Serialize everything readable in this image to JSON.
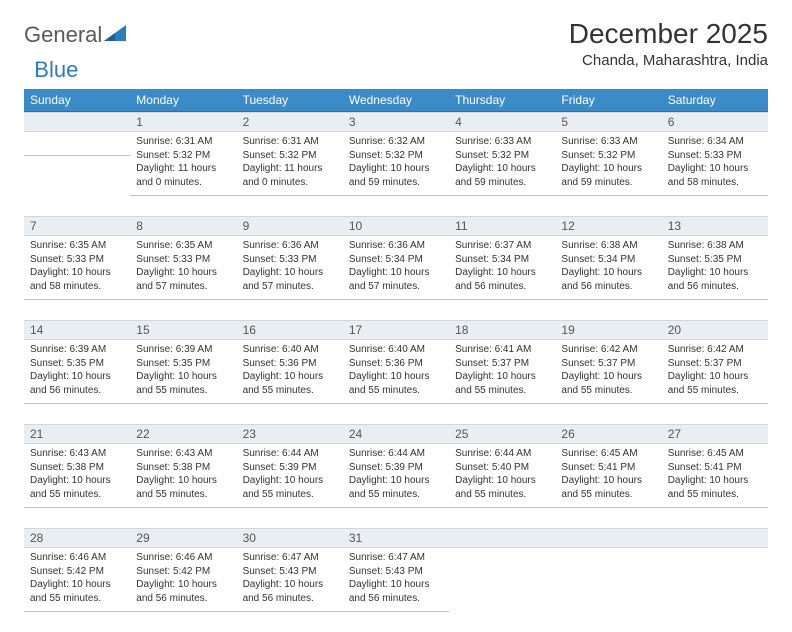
{
  "brand": {
    "part1": "General",
    "part2": "Blue"
  },
  "title": "December 2025",
  "location": "Chanda, Maharashtra, India",
  "colors": {
    "header_bg": "#3b8bc9",
    "header_text": "#ffffff",
    "daynum_bg": "#e9eef2",
    "text": "#333333",
    "brand_gray": "#5a5a5a",
    "brand_blue": "#2c7bbf",
    "row_divider": "#3b6e9e"
  },
  "day_headers": [
    "Sunday",
    "Monday",
    "Tuesday",
    "Wednesday",
    "Thursday",
    "Friday",
    "Saturday"
  ],
  "weeks": [
    [
      null,
      {
        "n": "1",
        "sr": "Sunrise: 6:31 AM",
        "ss": "Sunset: 5:32 PM",
        "dl": "Daylight: 11 hours and 0 minutes."
      },
      {
        "n": "2",
        "sr": "Sunrise: 6:31 AM",
        "ss": "Sunset: 5:32 PM",
        "dl": "Daylight: 11 hours and 0 minutes."
      },
      {
        "n": "3",
        "sr": "Sunrise: 6:32 AM",
        "ss": "Sunset: 5:32 PM",
        "dl": "Daylight: 10 hours and 59 minutes."
      },
      {
        "n": "4",
        "sr": "Sunrise: 6:33 AM",
        "ss": "Sunset: 5:32 PM",
        "dl": "Daylight: 10 hours and 59 minutes."
      },
      {
        "n": "5",
        "sr": "Sunrise: 6:33 AM",
        "ss": "Sunset: 5:32 PM",
        "dl": "Daylight: 10 hours and 59 minutes."
      },
      {
        "n": "6",
        "sr": "Sunrise: 6:34 AM",
        "ss": "Sunset: 5:33 PM",
        "dl": "Daylight: 10 hours and 58 minutes."
      }
    ],
    [
      {
        "n": "7",
        "sr": "Sunrise: 6:35 AM",
        "ss": "Sunset: 5:33 PM",
        "dl": "Daylight: 10 hours and 58 minutes."
      },
      {
        "n": "8",
        "sr": "Sunrise: 6:35 AM",
        "ss": "Sunset: 5:33 PM",
        "dl": "Daylight: 10 hours and 57 minutes."
      },
      {
        "n": "9",
        "sr": "Sunrise: 6:36 AM",
        "ss": "Sunset: 5:33 PM",
        "dl": "Daylight: 10 hours and 57 minutes."
      },
      {
        "n": "10",
        "sr": "Sunrise: 6:36 AM",
        "ss": "Sunset: 5:34 PM",
        "dl": "Daylight: 10 hours and 57 minutes."
      },
      {
        "n": "11",
        "sr": "Sunrise: 6:37 AM",
        "ss": "Sunset: 5:34 PM",
        "dl": "Daylight: 10 hours and 56 minutes."
      },
      {
        "n": "12",
        "sr": "Sunrise: 6:38 AM",
        "ss": "Sunset: 5:34 PM",
        "dl": "Daylight: 10 hours and 56 minutes."
      },
      {
        "n": "13",
        "sr": "Sunrise: 6:38 AM",
        "ss": "Sunset: 5:35 PM",
        "dl": "Daylight: 10 hours and 56 minutes."
      }
    ],
    [
      {
        "n": "14",
        "sr": "Sunrise: 6:39 AM",
        "ss": "Sunset: 5:35 PM",
        "dl": "Daylight: 10 hours and 56 minutes."
      },
      {
        "n": "15",
        "sr": "Sunrise: 6:39 AM",
        "ss": "Sunset: 5:35 PM",
        "dl": "Daylight: 10 hours and 55 minutes."
      },
      {
        "n": "16",
        "sr": "Sunrise: 6:40 AM",
        "ss": "Sunset: 5:36 PM",
        "dl": "Daylight: 10 hours and 55 minutes."
      },
      {
        "n": "17",
        "sr": "Sunrise: 6:40 AM",
        "ss": "Sunset: 5:36 PM",
        "dl": "Daylight: 10 hours and 55 minutes."
      },
      {
        "n": "18",
        "sr": "Sunrise: 6:41 AM",
        "ss": "Sunset: 5:37 PM",
        "dl": "Daylight: 10 hours and 55 minutes."
      },
      {
        "n": "19",
        "sr": "Sunrise: 6:42 AM",
        "ss": "Sunset: 5:37 PM",
        "dl": "Daylight: 10 hours and 55 minutes."
      },
      {
        "n": "20",
        "sr": "Sunrise: 6:42 AM",
        "ss": "Sunset: 5:37 PM",
        "dl": "Daylight: 10 hours and 55 minutes."
      }
    ],
    [
      {
        "n": "21",
        "sr": "Sunrise: 6:43 AM",
        "ss": "Sunset: 5:38 PM",
        "dl": "Daylight: 10 hours and 55 minutes."
      },
      {
        "n": "22",
        "sr": "Sunrise: 6:43 AM",
        "ss": "Sunset: 5:38 PM",
        "dl": "Daylight: 10 hours and 55 minutes."
      },
      {
        "n": "23",
        "sr": "Sunrise: 6:44 AM",
        "ss": "Sunset: 5:39 PM",
        "dl": "Daylight: 10 hours and 55 minutes."
      },
      {
        "n": "24",
        "sr": "Sunrise: 6:44 AM",
        "ss": "Sunset: 5:39 PM",
        "dl": "Daylight: 10 hours and 55 minutes."
      },
      {
        "n": "25",
        "sr": "Sunrise: 6:44 AM",
        "ss": "Sunset: 5:40 PM",
        "dl": "Daylight: 10 hours and 55 minutes."
      },
      {
        "n": "26",
        "sr": "Sunrise: 6:45 AM",
        "ss": "Sunset: 5:41 PM",
        "dl": "Daylight: 10 hours and 55 minutes."
      },
      {
        "n": "27",
        "sr": "Sunrise: 6:45 AM",
        "ss": "Sunset: 5:41 PM",
        "dl": "Daylight: 10 hours and 55 minutes."
      }
    ],
    [
      {
        "n": "28",
        "sr": "Sunrise: 6:46 AM",
        "ss": "Sunset: 5:42 PM",
        "dl": "Daylight: 10 hours and 55 minutes."
      },
      {
        "n": "29",
        "sr": "Sunrise: 6:46 AM",
        "ss": "Sunset: 5:42 PM",
        "dl": "Daylight: 10 hours and 56 minutes."
      },
      {
        "n": "30",
        "sr": "Sunrise: 6:47 AM",
        "ss": "Sunset: 5:43 PM",
        "dl": "Daylight: 10 hours and 56 minutes."
      },
      {
        "n": "31",
        "sr": "Sunrise: 6:47 AM",
        "ss": "Sunset: 5:43 PM",
        "dl": "Daylight: 10 hours and 56 minutes."
      },
      null,
      null,
      null
    ]
  ]
}
